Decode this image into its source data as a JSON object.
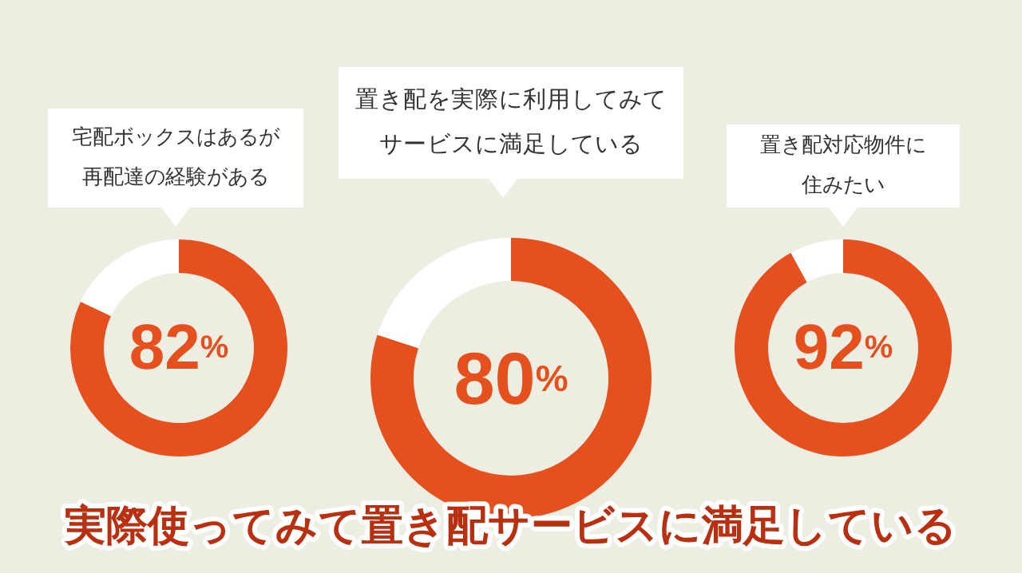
{
  "chart_data": [
    {
      "type": "donut",
      "title": "宅配ボックスはあるが再配達の経験がある",
      "categories": [
        null,
        null
      ],
      "values": [
        82,
        18
      ],
      "colors": [
        "#e4501e",
        "#ffffff"
      ],
      "value_labels": [
        "82%",
        null
      ]
    },
    {
      "type": "donut",
      "title": "置き配を実際に利用してみてサービスに満足している",
      "categories": [
        null,
        null
      ],
      "values": [
        80,
        20
      ],
      "colors": [
        "#e4501e",
        "#ffffff"
      ],
      "value_labels": [
        "80%",
        null
      ],
      "annotations": [
        "実際使ってみて置き配サービスに満足している"
      ]
    },
    {
      "type": "donut",
      "title": "置き配対応物件に住みたい",
      "categories": [
        null,
        null
      ],
      "values": [
        92,
        8
      ],
      "colors": [
        "#e4501e",
        "#ffffff"
      ],
      "value_labels": [
        "92%",
        null
      ]
    }
  ]
}
